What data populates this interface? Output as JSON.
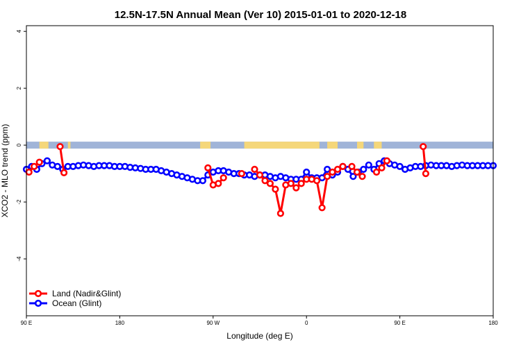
{
  "chart_data": {
    "type": "line",
    "title": "12.5N-17.5N Annual Mean (Ver 10)   2015-01-01 to 2020-12-18",
    "xlabel": "Longitude (deg E)",
    "ylabel": "XCO2 - MLO trend (ppm)",
    "xlim": [
      -180,
      180
    ],
    "ylim": [
      -6,
      4.2
    ],
    "x_ticks": [
      {
        "value": -180,
        "label": "90 E"
      },
      {
        "value": -108,
        "label": "180"
      },
      {
        "value": -36,
        "label": "90 W"
      },
      {
        "value": 36,
        "label": "0"
      },
      {
        "value": 108,
        "label": "90 E"
      },
      {
        "value": 180,
        "label": "180"
      }
    ],
    "y_ticks": [
      {
        "value": 4,
        "label": "4"
      },
      {
        "value": 2,
        "label": "2"
      },
      {
        "value": 0,
        "label": "0"
      },
      {
        "value": -2,
        "label": "-2"
      },
      {
        "value": -4,
        "label": "-4"
      }
    ],
    "legend_position": "bottom-left",
    "colors": {
      "land": "#ff0000",
      "ocean": "#0000ff",
      "band_ocean": "#a0b4d8",
      "band_land": "#f5d77a"
    },
    "land_mask_segments": [
      [
        -170,
        -163
      ],
      [
        -148,
        -146
      ],
      [
        -46,
        -38
      ],
      [
        -12,
        46
      ],
      [
        52,
        60
      ],
      [
        75,
        80
      ],
      [
        88,
        94
      ]
    ],
    "series": [
      {
        "name": "Land (Nadir&Glint)",
        "color": "#ff0000",
        "segments": [
          {
            "x": [
              -178,
              -174,
              -170
            ],
            "y": [
              -0.95,
              -0.75,
              -0.6
            ]
          },
          {
            "x": [
              -154,
              -151
            ],
            "y": [
              -0.05,
              -0.97
            ]
          },
          {
            "x": [
              -40,
              -36,
              -32,
              -28
            ],
            "y": [
              -0.8,
              -1.4,
              -1.35,
              -1.15
            ]
          },
          {
            "x": [
              -14
            ],
            "y": [
              -1.0
            ]
          },
          {
            "x": [
              -4,
              0,
              4,
              8,
              12,
              16,
              20,
              24,
              28,
              32,
              36,
              40,
              44,
              48,
              52,
              56,
              60,
              64
            ],
            "y": [
              -0.85,
              -1.05,
              -1.25,
              -1.35,
              -1.55,
              -2.4,
              -1.4,
              -1.35,
              -1.5,
              -1.35,
              -1.2,
              -1.2,
              -1.25,
              -2.2,
              -1.1,
              -0.95,
              -0.85,
              -0.75
            ]
          },
          {
            "x": [
              71,
              75,
              79
            ],
            "y": [
              -0.75,
              -0.95,
              -1.1
            ]
          },
          {
            "x": [
              90,
              94,
              98
            ],
            "y": [
              -0.95,
              -0.8,
              -0.55
            ]
          },
          {
            "x": [
              126,
              128
            ],
            "y": [
              -0.05,
              -1.0
            ]
          }
        ]
      },
      {
        "name": "Ocean (Glint)",
        "color": "#0000ff",
        "segments": [
          {
            "x": [
              -180,
              -176,
              -172,
              -168,
              -164,
              -160,
              -156,
              -152,
              -148,
              -144,
              -140,
              -136,
              -132,
              -128,
              -124,
              -120,
              -116,
              -112,
              -108,
              -104,
              -100,
              -96,
              -92,
              -88,
              -84,
              -80,
              -76,
              -72,
              -68,
              -64,
              -60,
              -56,
              -52,
              -48,
              -44,
              -40,
              -36,
              -32,
              -28,
              -24,
              -20,
              -16,
              -12,
              -8,
              -4,
              0,
              4,
              8,
              12,
              16,
              20,
              24,
              28,
              32,
              36,
              40,
              44,
              48,
              52,
              56,
              60,
              64,
              68,
              72,
              76,
              80,
              84,
              88,
              92,
              96,
              100,
              104,
              108,
              112,
              116,
              120,
              124,
              128,
              132,
              136,
              140,
              144,
              148,
              152,
              156,
              160,
              164,
              168,
              172,
              176,
              180
            ],
            "y": [
              -0.85,
              -0.75,
              -0.85,
              -0.65,
              -0.55,
              -0.7,
              -0.75,
              -0.85,
              -0.75,
              -0.75,
              -0.72,
              -0.7,
              -0.72,
              -0.75,
              -0.72,
              -0.72,
              -0.72,
              -0.75,
              -0.75,
              -0.75,
              -0.78,
              -0.8,
              -0.82,
              -0.85,
              -0.85,
              -0.85,
              -0.9,
              -0.95,
              -1.0,
              -1.05,
              -1.1,
              -1.15,
              -1.2,
              -1.25,
              -1.25,
              -1.05,
              -0.95,
              -0.9,
              -0.9,
              -0.95,
              -1.0,
              -1.0,
              -1.05,
              -1.05,
              -1.1,
              -1.05,
              -1.05,
              -1.1,
              -1.15,
              -1.1,
              -1.15,
              -1.2,
              -1.2,
              -1.2,
              -0.95,
              -1.15,
              -1.15,
              -1.15,
              -0.85,
              -1.05,
              -0.95,
              -0.75,
              -0.85,
              -1.1,
              -0.95,
              -0.85,
              -0.7,
              -0.85,
              -0.65,
              -0.55,
              -0.65,
              -0.7,
              -0.75,
              -0.85,
              -0.8,
              -0.75,
              -0.75,
              -0.72,
              -0.7,
              -0.72,
              -0.72,
              -0.72,
              -0.75,
              -0.72,
              -0.7,
              -0.72,
              -0.72,
              -0.72,
              -0.72,
              -0.72,
              -0.72
            ]
          }
        ]
      }
    ]
  }
}
